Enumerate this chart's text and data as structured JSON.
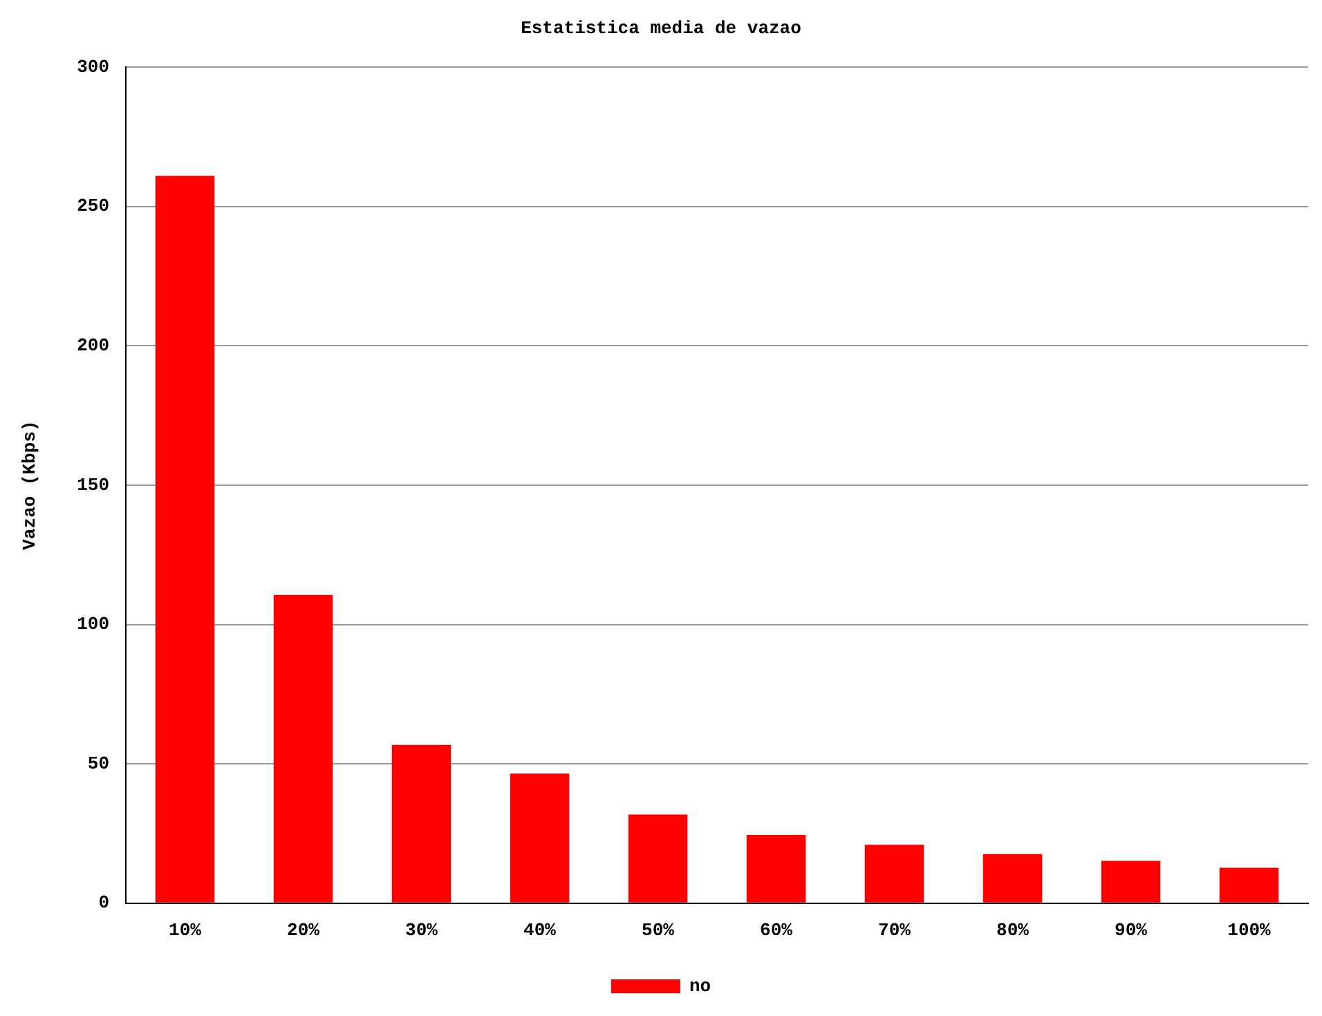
{
  "chart_data": {
    "type": "bar",
    "title": "Estatistica media de vazao",
    "ylabel": "Vazao (Kbps)",
    "categories": [
      "10%",
      "20%",
      "30%",
      "40%",
      "50%",
      "60%",
      "70%",
      "80%",
      "90%",
      "100%"
    ],
    "series": [
      {
        "name": "no",
        "color": "#ff0000",
        "values": [
          261,
          110.6,
          56.8,
          46.5,
          31.8,
          24.5,
          21,
          17.6,
          15.2,
          12.7
        ]
      }
    ],
    "ylim": [
      0,
      300
    ],
    "yticks": [
      0,
      50,
      100,
      150,
      200,
      250,
      300
    ],
    "grid": "y",
    "legend": "bottom"
  }
}
